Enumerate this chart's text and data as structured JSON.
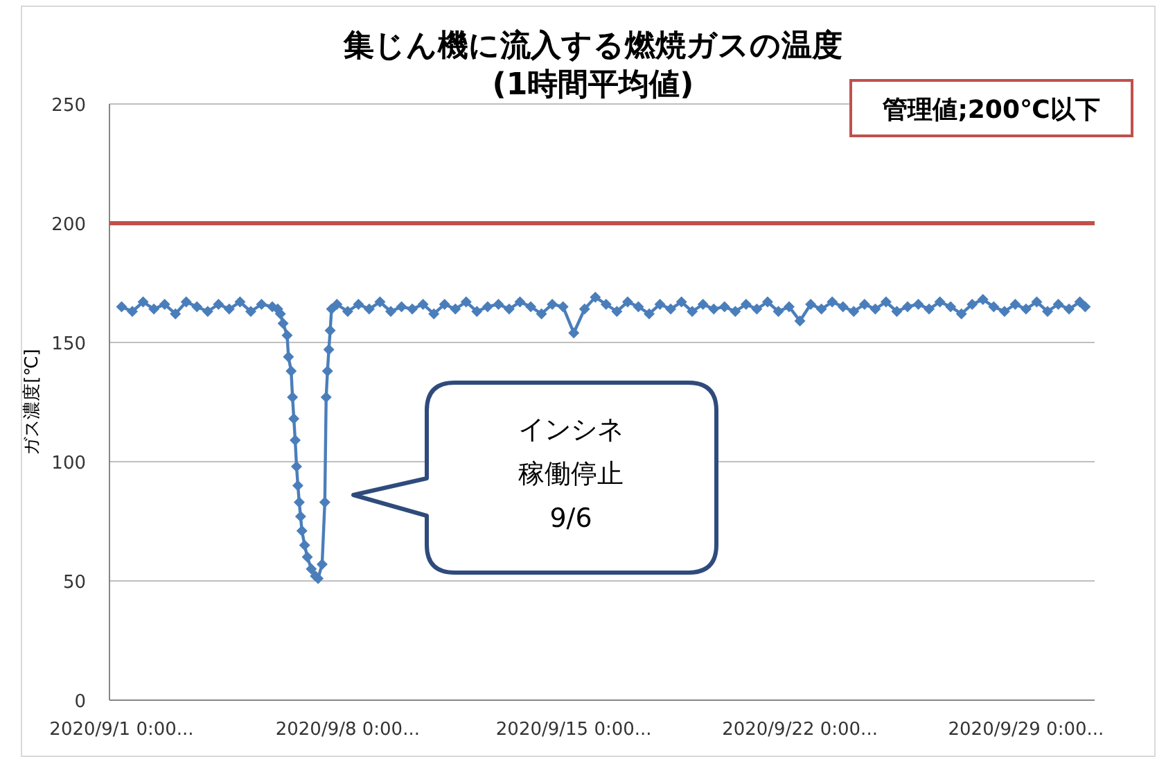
{
  "chart_data": {
    "type": "line",
    "title": "集じん機に流入する燃焼ガスの温度",
    "subtitle": "(1時間平均値)",
    "ylabel": "ガス濃度[℃]",
    "xlim": [
      "2020-08-31T15:00",
      "2020-10-01T03:00"
    ],
    "xticks": [
      {
        "value": "2020-09-01",
        "label": "2020/9/1 0:00..."
      },
      {
        "value": "2020-09-08",
        "label": "2020/9/8 0:00..."
      },
      {
        "value": "2020-09-15",
        "label": "2020/9/15 0:00..."
      },
      {
        "value": "2020-09-22",
        "label": "2020/9/22 0:00..."
      },
      {
        "value": "2020-09-29",
        "label": "2020/9/29 0:00..."
      }
    ],
    "ylim": [
      0,
      250
    ],
    "yticks": [
      0,
      50,
      100,
      150,
      200,
      250
    ],
    "grid": "y",
    "marker": "diamond",
    "line_style": "solid",
    "ref_lines": [
      {
        "axis": "y",
        "value": 200,
        "color": "#c0504d"
      }
    ],
    "annotations": [
      "管理値;200℃以下",
      "インシネ",
      "稼働停止",
      "9/6"
    ],
    "series": [
      {
        "color": "#4a7ebb",
        "x": [
          "2020-09-01T00:00",
          "2020-09-01T08:00",
          "2020-09-01T16:00",
          "2020-09-02T00:00",
          "2020-09-02T08:00",
          "2020-09-02T16:00",
          "2020-09-03T00:00",
          "2020-09-03T08:00",
          "2020-09-03T16:00",
          "2020-09-04T00:00",
          "2020-09-04T08:00",
          "2020-09-04T16:00",
          "2020-09-05T00:00",
          "2020-09-05T08:00",
          "2020-09-05T16:00",
          "2020-09-05T20:00",
          "2020-09-05T22:00",
          "2020-09-06T00:00",
          "2020-09-06T03:00",
          "2020-09-06T04:00",
          "2020-09-06T06:00",
          "2020-09-06T07:00",
          "2020-09-06T08:00",
          "2020-09-06T09:00",
          "2020-09-06T10:00",
          "2020-09-06T11:00",
          "2020-09-06T12:00",
          "2020-09-06T13:00",
          "2020-09-06T14:00",
          "2020-09-06T16:00",
          "2020-09-06T18:00",
          "2020-09-06T21:00",
          "2020-09-07T00:00",
          "2020-09-07T02:00",
          "2020-09-07T05:00",
          "2020-09-07T07:00",
          "2020-09-07T08:00",
          "2020-09-07T09:00",
          "2020-09-07T10:00",
          "2020-09-07T11:00",
          "2020-09-07T12:00",
          "2020-09-07T16:00",
          "2020-09-08T00:00",
          "2020-09-08T08:00",
          "2020-09-08T16:00",
          "2020-09-09T00:00",
          "2020-09-09T08:00",
          "2020-09-09T16:00",
          "2020-09-10T00:00",
          "2020-09-10T08:00",
          "2020-09-10T16:00",
          "2020-09-11T00:00",
          "2020-09-11T08:00",
          "2020-09-11T16:00",
          "2020-09-12T00:00",
          "2020-09-12T08:00",
          "2020-09-12T16:00",
          "2020-09-13T00:00",
          "2020-09-13T08:00",
          "2020-09-13T16:00",
          "2020-09-14T00:00",
          "2020-09-14T08:00",
          "2020-09-14T16:00",
          "2020-09-15T00:00",
          "2020-09-15T08:00",
          "2020-09-15T16:00",
          "2020-09-16T00:00",
          "2020-09-16T08:00",
          "2020-09-16T16:00",
          "2020-09-17T00:00",
          "2020-09-17T08:00",
          "2020-09-17T16:00",
          "2020-09-18T00:00",
          "2020-09-18T08:00",
          "2020-09-18T16:00",
          "2020-09-19T00:00",
          "2020-09-19T08:00",
          "2020-09-19T16:00",
          "2020-09-20T00:00",
          "2020-09-20T08:00",
          "2020-09-20T16:00",
          "2020-09-21T00:00",
          "2020-09-21T08:00",
          "2020-09-21T16:00",
          "2020-09-22T00:00",
          "2020-09-22T08:00",
          "2020-09-22T16:00",
          "2020-09-23T00:00",
          "2020-09-23T08:00",
          "2020-09-23T16:00",
          "2020-09-24T00:00",
          "2020-09-24T08:00",
          "2020-09-24T16:00",
          "2020-09-25T00:00",
          "2020-09-25T08:00",
          "2020-09-25T16:00",
          "2020-09-26T00:00",
          "2020-09-26T08:00",
          "2020-09-26T16:00",
          "2020-09-27T00:00",
          "2020-09-27T08:00",
          "2020-09-27T16:00",
          "2020-09-28T00:00",
          "2020-09-28T08:00",
          "2020-09-28T16:00",
          "2020-09-29T00:00",
          "2020-09-29T08:00",
          "2020-09-29T16:00",
          "2020-09-30T00:00",
          "2020-09-30T08:00",
          "2020-09-30T16:00",
          "2020-09-30T20:00"
        ],
        "values": [
          165,
          163,
          167,
          164,
          166,
          162,
          167,
          165,
          163,
          166,
          164,
          167,
          163,
          166,
          165,
          164,
          162,
          158,
          153,
          144,
          138,
          127,
          118,
          109,
          98,
          90,
          83,
          77,
          71,
          65,
          60,
          55,
          52,
          51,
          57,
          83,
          127,
          138,
          147,
          155,
          164,
          166,
          163,
          166,
          164,
          167,
          163,
          165,
          164,
          166,
          162,
          166,
          164,
          167,
          163,
          165,
          166,
          164,
          167,
          165,
          162,
          166,
          165,
          154,
          164,
          169,
          166,
          163,
          167,
          165,
          162,
          166,
          164,
          167,
          163,
          166,
          164,
          165,
          163,
          166,
          164,
          167,
          163,
          165,
          159,
          166,
          164,
          167,
          165,
          163,
          166,
          164,
          167,
          163,
          165,
          166,
          164,
          167,
          165,
          162,
          166,
          168,
          165,
          163,
          166,
          164,
          167,
          163,
          166,
          164,
          167,
          165
        ]
      }
    ]
  }
}
